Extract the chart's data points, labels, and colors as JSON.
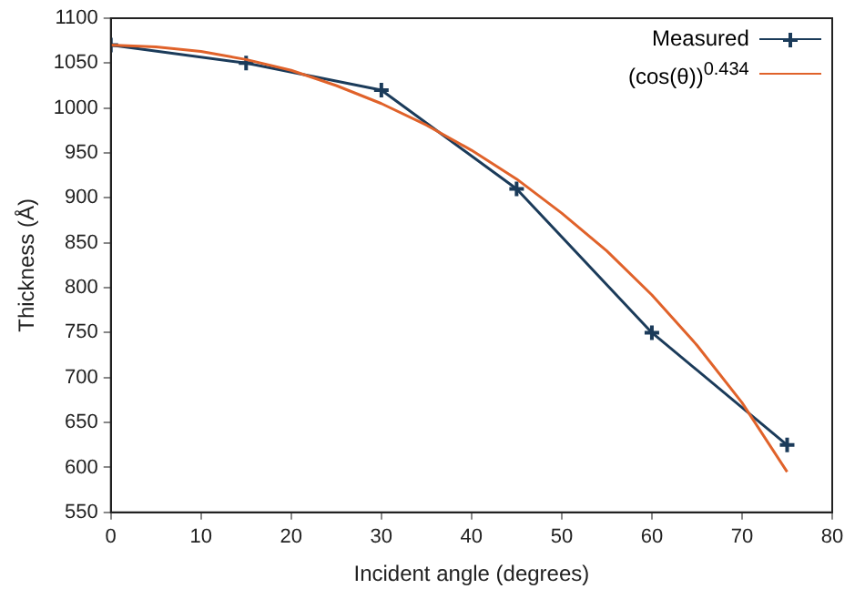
{
  "chart_data": {
    "type": "line",
    "xlabel": "Incident angle (degrees)",
    "ylabel": "Thickness (Å)",
    "xlim": [
      0,
      80
    ],
    "xticks": [
      0,
      10,
      20,
      30,
      40,
      50,
      60,
      70,
      80
    ],
    "ylim": [
      550,
      1100
    ],
    "yticks": [
      550,
      600,
      650,
      700,
      750,
      800,
      850,
      900,
      950,
      1000,
      1050,
      1100
    ],
    "grid": false,
    "legend": "top right",
    "line_style": "solid",
    "series": [
      {
        "name": "Measured",
        "marker": "cross",
        "color": "#1b3b5a",
        "x": [
          0,
          15,
          30,
          45,
          60,
          75
        ],
        "values": [
          1070,
          1050,
          1020,
          910,
          750,
          625
        ]
      },
      {
        "name": "(cos(θ))$^{0.434}$",
        "marker": "none",
        "color": "#e0622a",
        "x": [
          0,
          5,
          10,
          15,
          20,
          25,
          30,
          35,
          40,
          45,
          50,
          55,
          60,
          65,
          70,
          75
        ],
        "values": [
          1070,
          1068,
          1063,
          1054,
          1042,
          1025,
          1005,
          981,
          953,
          921,
          883,
          841,
          792,
          736,
          672,
          595
        ]
      }
    ]
  }
}
